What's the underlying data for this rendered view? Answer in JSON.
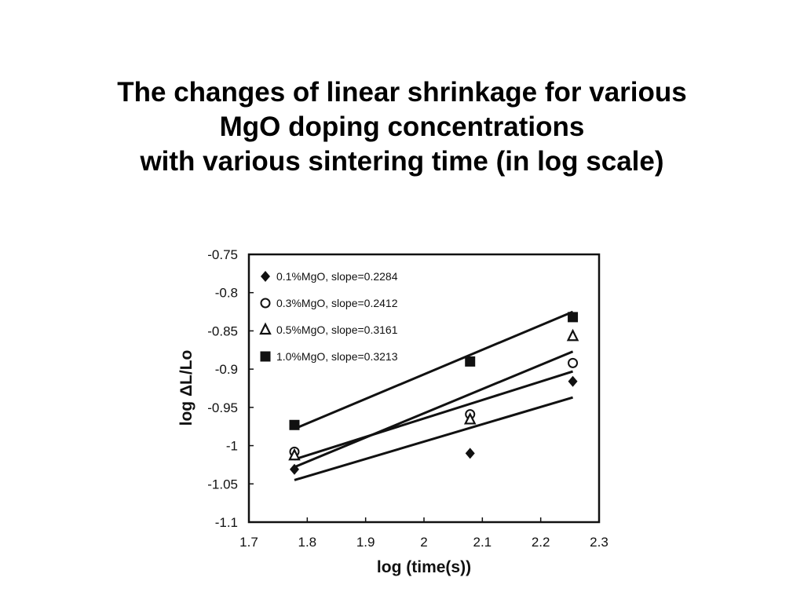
{
  "slide": {
    "title_lines": [
      "The changes of linear shrinkage for various",
      "MgO doping concentrations",
      "with various sintering time (in log scale)"
    ]
  },
  "chart_data": {
    "type": "scatter",
    "xlabel": "log (time(s))",
    "ylabel": "log ΔL/Lo",
    "xlim": [
      1.7,
      2.3
    ],
    "ylim": [
      -1.1,
      -0.75
    ],
    "xticks": [
      1.7,
      1.8,
      1.9,
      2,
      2.1,
      2.2,
      2.3
    ],
    "xtick_labels": [
      "1.7",
      "1.8",
      "1.9",
      "2",
      "2.1",
      "2.2",
      "2.3"
    ],
    "yticks": [
      -0.75,
      -0.8,
      -0.85,
      -0.9,
      -0.95,
      -1,
      -1.05,
      -1.1
    ],
    "ytick_labels": [
      "-0.75",
      "-0.8",
      "-0.85",
      "-0.9",
      "-0.95",
      "-1",
      "-1.05",
      "-1.1"
    ],
    "grid": false,
    "legend_position": "top-left",
    "series": [
      {
        "name": "0.1%MgO, slope=0.2284",
        "marker": "diamond",
        "x": [
          1.778,
          2.079,
          2.255
        ],
        "y": [
          -1.031,
          -1.01,
          -0.916
        ],
        "fit": {
          "x": [
            1.778,
            2.255
          ],
          "y": [
            -1.045,
            -0.937
          ]
        }
      },
      {
        "name": "0.3%MgO, slope=0.2412",
        "marker": "circle",
        "x": [
          1.778,
          2.079,
          2.255
        ],
        "y": [
          -1.008,
          -0.959,
          -0.892
        ],
        "fit": {
          "x": [
            1.778,
            2.255
          ],
          "y": [
            -1.018,
            -0.903
          ]
        }
      },
      {
        "name": "0.5%MgO, slope=0.3161",
        "marker": "triangle",
        "x": [
          1.778,
          2.079,
          2.255
        ],
        "y": [
          -1.013,
          -0.966,
          -0.857
        ],
        "fit": {
          "x": [
            1.778,
            2.255
          ],
          "y": [
            -1.028,
            -0.877
          ]
        }
      },
      {
        "name": "1.0%MgO, slope=0.3213",
        "marker": "square",
        "x": [
          1.778,
          2.079,
          2.255
        ],
        "y": [
          -0.973,
          -0.89,
          -0.832
        ],
        "fit": {
          "x": [
            1.778,
            2.255
          ],
          "y": [
            -0.978,
            -0.825
          ]
        }
      }
    ]
  }
}
